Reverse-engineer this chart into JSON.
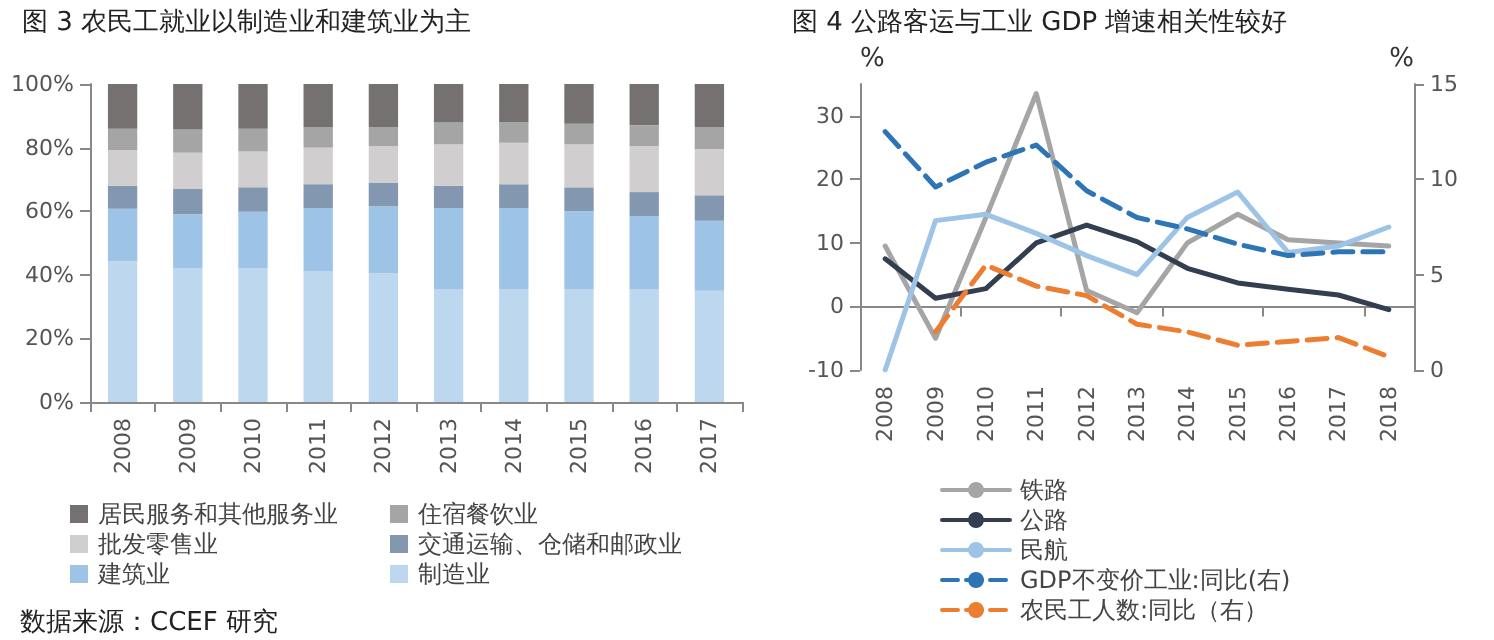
{
  "chart_data": [
    {
      "type": "bar",
      "title": "图 3 农民工就业以制造业和建筑业为主",
      "stacked": true,
      "legend": "bottom",
      "annotations": [
        "数据来源：CCEF 研究"
      ],
      "categories": [
        "2008",
        "2009",
        "2010",
        "2011",
        "2012",
        "2013",
        "2014",
        "2015",
        "2016",
        "2017"
      ],
      "ylim": [
        0,
        100
      ],
      "yticks": [
        {
          "value": 0,
          "label": "0%"
        },
        {
          "value": 20,
          "label": "20%"
        },
        {
          "value": 40,
          "label": "40%"
        },
        {
          "value": 60,
          "label": "60%"
        },
        {
          "value": 80,
          "label": "80%"
        },
        {
          "value": 100,
          "label": "100%"
        }
      ],
      "series": [
        {
          "name": "制造业",
          "color": "#bdd7ee",
          "values": [
            44.3,
            42,
            42,
            41,
            40.5,
            35.5,
            35.5,
            35.5,
            35.5,
            35
          ]
        },
        {
          "name": "建筑业",
          "color": "#9dc3e6",
          "values": [
            16.5,
            17,
            17.8,
            20,
            21,
            25.5,
            25.5,
            24.5,
            23,
            22
          ]
        },
        {
          "name": "交通运输、仓储和邮政业",
          "color": "#8497b0",
          "values": [
            7.2,
            8,
            7.7,
            7.5,
            7.5,
            7,
            7.5,
            7.5,
            7.5,
            8
          ]
        },
        {
          "name": "批发零售业",
          "color": "#d0cece",
          "values": [
            11.2,
            11.4,
            11.3,
            11.5,
            11.5,
            13,
            13,
            13.5,
            14.5,
            14.5
          ]
        },
        {
          "name": "住宿餐饮业",
          "color": "#a5a5a5",
          "values": [
            6.7,
            7.3,
            7.1,
            6.5,
            6,
            7,
            6.5,
            6.5,
            6.5,
            7
          ]
        },
        {
          "name": "居民服务和其他服务业",
          "color": "#767171",
          "values": [
            14.1,
            14.3,
            14.1,
            13.5,
            13.5,
            12,
            12,
            12.5,
            13,
            13.5
          ]
        }
      ]
    },
    {
      "type": "line",
      "title": "图 4 公路客运与工业 GDP 增速相关性较好",
      "legend": "bottom",
      "marker": "none",
      "ylabel": "%",
      "y2label": "%",
      "categories": [
        "2008",
        "2009",
        "2010",
        "2011",
        "2012",
        "2013",
        "2014",
        "2015",
        "2016",
        "2017",
        "2018"
      ],
      "ylim": [
        -10,
        35
      ],
      "yticks": [
        -10,
        0,
        10,
        20,
        30
      ],
      "y2lim": [
        0,
        15
      ],
      "y2ticks": [
        0,
        5,
        10,
        15
      ],
      "series": [
        {
          "name": "铁路",
          "color": "#a5a5a5",
          "values": [
            9.5,
            -5,
            14,
            33.5,
            2.5,
            -1,
            10,
            14.5,
            10.5,
            10,
            9.5
          ]
        },
        {
          "name": "公路",
          "color": "#333f50",
          "values": [
            7.5,
            1.3,
            2.8,
            10,
            12.8,
            10.2,
            6,
            3.7,
            2.7,
            1.8,
            -0.5
          ]
        },
        {
          "name": "民航",
          "color": "#9dc3e6",
          "values": [
            -10,
            13.5,
            14.5,
            11.5,
            8,
            5,
            14,
            18,
            8.5,
            9.5,
            12.5
          ]
        },
        {
          "name": "GDP不变价工业:同比(右)",
          "color": "#2e75b6",
          "axis": "y2",
          "line_style": "dashed",
          "values": [
            12.5,
            9.6,
            10.9,
            11.8,
            9.4,
            8,
            7.4,
            6.6,
            6,
            6.2,
            6.2
          ]
        },
        {
          "name": "农民工人数:同比（右）",
          "color": "#ed7d31",
          "axis": "y2",
          "line_style": "dashed",
          "values": [
            null,
            2,
            5.5,
            4.4,
            3.9,
            2.4,
            2,
            1.3,
            1.5,
            1.7,
            0.7
          ]
        }
      ]
    }
  ]
}
